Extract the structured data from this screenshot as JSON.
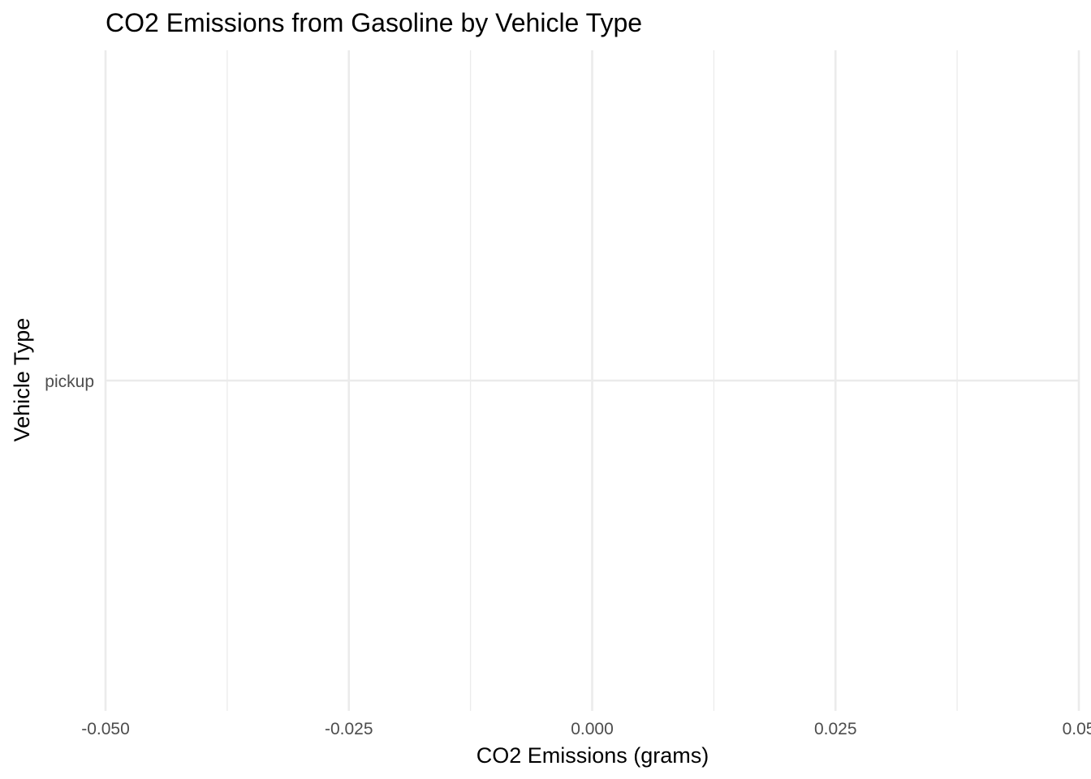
{
  "chart_data": {
    "type": "bar",
    "title": "CO2 Emissions from Gasoline by Vehicle Type",
    "xlabel": "CO2 Emissions (grams)",
    "ylabel": "Vehicle Type",
    "orientation": "horizontal",
    "categories": [
      "pickup"
    ],
    "values": [
      0
    ],
    "xlim": [
      -0.05,
      0.05
    ],
    "x_ticks": [
      -0.05,
      -0.025,
      0,
      0.025,
      0.05
    ],
    "x_tick_labels": [
      "-0.050",
      "-0.025",
      "0.000",
      "0.025",
      "0.05"
    ],
    "grid": true,
    "legend": "none",
    "colors": {
      "grid": "#ebebeb",
      "tick_text": "#4d4d4d",
      "text": "#000000",
      "background": "#ffffff"
    }
  }
}
